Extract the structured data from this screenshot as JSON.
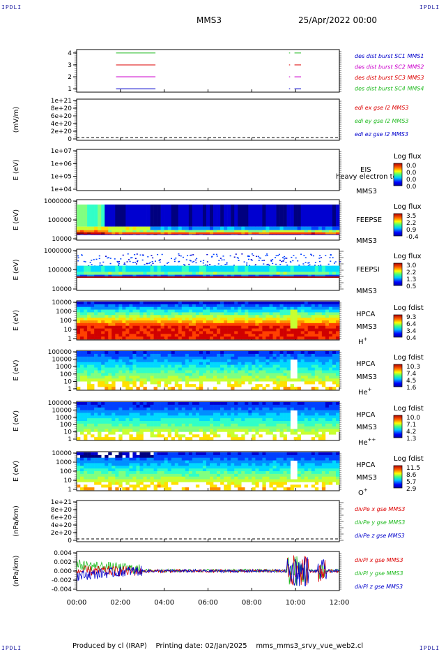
{
  "header": {
    "corner_tl": "IPDLI",
    "corner_tr": "IPDLI",
    "corner_bl": "IPDLI",
    "corner_br": "IPDLI",
    "spacecraft": "MMS3",
    "datetime": "25/Apr/2022 00:00"
  },
  "footer": {
    "producer": "Produced by cl (IRAP)",
    "print_date": "Printing date: 02/Jan/2025",
    "filename": "mms_mms3_srvy_vue_web2.cl"
  },
  "colors": {
    "red": "#dd0000",
    "green": "#22bb22",
    "blue": "#0000cc",
    "magenta": "#cc00cc"
  },
  "chart_data": [
    {
      "id": "p1",
      "type": "line",
      "yticks": [
        "1",
        "2",
        "3",
        "4"
      ],
      "legend": [
        {
          "text": "des dist burst SC1 MMS1",
          "color": "#0000cc"
        },
        {
          "text": "des dist burst SC2 MMS2",
          "color": "#cc00cc"
        },
        {
          "text": "des dist burst SC3 MMS3",
          "color": "#dd0000"
        },
        {
          "text": "des dist burst SC4 MMS4",
          "color": "#22bb22"
        }
      ],
      "series": [
        {
          "level": 4,
          "color": "#22bb22",
          "segments": [
            [
              1.8,
              3.6
            ],
            [
              9.7,
              9.75
            ],
            [
              9.95,
              10.25
            ]
          ]
        },
        {
          "level": 3,
          "color": "#dd0000",
          "segments": [
            [
              1.8,
              3.6
            ],
            [
              9.7,
              9.75
            ],
            [
              9.95,
              10.25
            ]
          ]
        },
        {
          "level": 2,
          "color": "#cc00cc",
          "segments": [
            [
              1.8,
              3.6
            ],
            [
              9.7,
              9.75
            ],
            [
              9.95,
              10.25
            ]
          ]
        },
        {
          "level": 1,
          "color": "#0000cc",
          "segments": [
            [
              1.8,
              3.6
            ],
            [
              9.7,
              9.75
            ],
            [
              9.95,
              10.25
            ]
          ]
        }
      ]
    },
    {
      "id": "p2",
      "type": "line",
      "ylabel": "(mV/m)",
      "yticks": [
        "0",
        "2e+20",
        "4e+20",
        "6e+20",
        "8e+20",
        "1e+21"
      ],
      "legend": [
        {
          "text": "edi ex gse l2 MMS3",
          "color": "#dd0000"
        },
        {
          "text": "edi ey gse l2 MMS3",
          "color": "#22bb22"
        },
        {
          "text": "edi ez gse l2 MMS3",
          "color": "#0000cc"
        }
      ]
    },
    {
      "id": "p3",
      "type": "heatmap",
      "ylabel": "E (eV)",
      "yticks": [
        "1e+04",
        "1e+05",
        "1e+06",
        "1e+07"
      ],
      "instrument": "EIS",
      "spacecraft": "MMS3",
      "overlap_text": "heavy electron to",
      "cbar_title": "Log flux",
      "cbar_ticks": [
        "0.0",
        "0.0",
        "0.0",
        "0.0"
      ]
    },
    {
      "id": "p4",
      "type": "heatmap",
      "ylabel": "E (eV)",
      "yticks": [
        "10000",
        "100000",
        "1000000"
      ],
      "instrument": "FEEPSE",
      "spacecraft": "MMS3",
      "cbar_title": "Log flux",
      "cbar_ticks": [
        "3.5",
        "2.2",
        "0.9",
        "-0.4"
      ]
    },
    {
      "id": "p5",
      "type": "heatmap",
      "ylabel": "E (eV)",
      "yticks": [
        "10000",
        "100000",
        "1000000"
      ],
      "instrument": "FEEPSI",
      "spacecraft": "MMS3",
      "cbar_title": "Log flux",
      "cbar_ticks": [
        "3.0",
        "2.2",
        "1.3",
        "0.5"
      ]
    },
    {
      "id": "p6",
      "type": "heatmap",
      "ylabel": "E (eV)",
      "yticks": [
        "1",
        "10",
        "100",
        "1000",
        "10000"
      ],
      "instrument": "HPCA",
      "spacecraft": "MMS3",
      "species": "H",
      "charge": "+",
      "cbar_title": "Log fdist",
      "cbar_ticks": [
        "9.3",
        "6.4",
        "3.4",
        "0.4"
      ]
    },
    {
      "id": "p7",
      "type": "heatmap",
      "ylabel": "E (eV)",
      "yticks": [
        "1",
        "10",
        "100",
        "1000",
        "10000",
        "100000"
      ],
      "instrument": "HPCA",
      "spacecraft": "MMS3",
      "species": "He",
      "charge": "+",
      "cbar_title": "Log fdist",
      "cbar_ticks": [
        "10.3",
        "7.4",
        "4.5",
        "1.6"
      ]
    },
    {
      "id": "p8",
      "type": "heatmap",
      "ylabel": "E (eV)",
      "yticks": [
        "1",
        "10",
        "100",
        "1000",
        "10000",
        "100000"
      ],
      "instrument": "HPCA",
      "spacecraft": "MMS3",
      "species": "He",
      "charge": "++",
      "cbar_title": "Log fdist",
      "cbar_ticks": [
        "10.0",
        "7.1",
        "4.2",
        "1.3"
      ]
    },
    {
      "id": "p9",
      "type": "heatmap",
      "ylabel": "E (eV)",
      "yticks": [
        "1",
        "10",
        "100",
        "1000",
        "10000"
      ],
      "instrument": "HPCA",
      "spacecraft": "MMS3",
      "species": "O",
      "charge": "+",
      "cbar_title": "Log fdist",
      "cbar_ticks": [
        "11.5",
        "8.6",
        "5.7",
        "2.9"
      ]
    },
    {
      "id": "p10",
      "type": "line",
      "ylabel": "(nPa/km)",
      "yticks": [
        "0",
        "2e+20",
        "4e+20",
        "6e+20",
        "8e+20",
        "1e+21"
      ],
      "legend": [
        {
          "text": "divPe x gse MMS3",
          "color": "#dd0000"
        },
        {
          "text": "divPe y gse MMS3",
          "color": "#22bb22"
        },
        {
          "text": "divPe z gse MMS3",
          "color": "#0000cc"
        }
      ]
    },
    {
      "id": "p11",
      "type": "line",
      "ylabel": "(nPa/km)",
      "yticks": [
        "-0.004",
        "-0.002",
        "0.000",
        "0.002",
        "0.004"
      ],
      "ylim": [
        -0.005,
        0.005
      ],
      "legend": [
        {
          "text": "divPi x gse MMS3",
          "color": "#dd0000"
        },
        {
          "text": "divPi y gse MMS3",
          "color": "#22bb22"
        },
        {
          "text": "divPi z gse MMS3",
          "color": "#0000cc"
        }
      ]
    }
  ],
  "xaxis": {
    "ticks": [
      "00:00",
      "02:00",
      "04:00",
      "06:00",
      "08:00",
      "10:00",
      "12:00"
    ],
    "range_hours": [
      0,
      12
    ]
  }
}
